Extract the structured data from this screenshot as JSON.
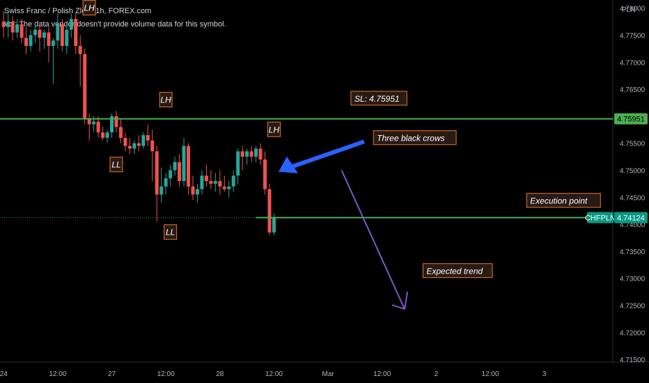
{
  "header": {
    "title": "Swiss Franc / Polish Zloty, 1h, FOREX.com",
    "volume_note": "Vol: The data vendor doesn't provide volume data for this symbol."
  },
  "chart_data": {
    "type": "candlestick",
    "currency_label": "PLN",
    "ylim": [
      4.7145,
      4.7815
    ],
    "y_ticks": [
      4.715,
      4.72,
      4.725,
      4.73,
      4.735,
      4.74,
      4.745,
      4.75,
      4.755,
      4.76,
      4.765,
      4.77,
      4.775,
      4.78
    ],
    "y_tick_labels": [
      "4.71500",
      "4.72000",
      "4.72500",
      "4.73000",
      "4.73500",
      "4.74000",
      "4.74500",
      "4.75000",
      "4.75500",
      "4.76000",
      "4.76500",
      "4.77000",
      "4.77500",
      "4.78000"
    ],
    "x_ticks": [
      {
        "bar": 0,
        "label": "24"
      },
      {
        "bar": 12,
        "label": "12:00"
      },
      {
        "bar": 24,
        "label": "27"
      },
      {
        "bar": 36,
        "label": "12:00"
      },
      {
        "bar": 48,
        "label": "28"
      },
      {
        "bar": 60,
        "label": "12:00"
      },
      {
        "bar": 72,
        "label": "Mar"
      },
      {
        "bar": 84,
        "label": "12:00"
      },
      {
        "bar": 96,
        "label": "2"
      },
      {
        "bar": 108,
        "label": "12:00"
      },
      {
        "bar": 120,
        "label": "3"
      }
    ],
    "bars_total": 136,
    "candles": [
      {
        "o": 4.7775,
        "h": 4.7795,
        "l": 4.7745,
        "c": 4.7765
      },
      {
        "o": 4.7765,
        "h": 4.779,
        "l": 4.7745,
        "c": 4.7775
      },
      {
        "o": 4.7775,
        "h": 4.7785,
        "l": 4.774,
        "c": 4.7755
      },
      {
        "o": 4.7755,
        "h": 4.778,
        "l": 4.7745,
        "c": 4.777
      },
      {
        "o": 4.777,
        "h": 4.778,
        "l": 4.7735,
        "c": 4.7745
      },
      {
        "o": 4.7745,
        "h": 4.7765,
        "l": 4.7715,
        "c": 4.773
      },
      {
        "o": 4.773,
        "h": 4.776,
        "l": 4.772,
        "c": 4.775
      },
      {
        "o": 4.775,
        "h": 4.7775,
        "l": 4.7735,
        "c": 4.776
      },
      {
        "o": 4.776,
        "h": 4.777,
        "l": 4.772,
        "c": 4.7745
      },
      {
        "o": 4.7745,
        "h": 4.776,
        "l": 4.7725,
        "c": 4.7755
      },
      {
        "o": 4.7755,
        "h": 4.7765,
        "l": 4.77,
        "c": 4.773
      },
      {
        "o": 4.773,
        "h": 4.7745,
        "l": 4.766,
        "c": 4.774
      },
      {
        "o": 4.774,
        "h": 4.779,
        "l": 4.7725,
        "c": 4.777
      },
      {
        "o": 4.777,
        "h": 4.778,
        "l": 4.772,
        "c": 4.773
      },
      {
        "o": 4.773,
        "h": 4.777,
        "l": 4.7715,
        "c": 4.776
      },
      {
        "o": 4.776,
        "h": 4.779,
        "l": 4.7745,
        "c": 4.778
      },
      {
        "o": 4.778,
        "h": 4.779,
        "l": 4.7715,
        "c": 4.773
      },
      {
        "o": 4.773,
        "h": 4.775,
        "l": 4.7655,
        "c": 4.7715
      },
      {
        "o": 4.7715,
        "h": 4.7725,
        "l": 4.7585,
        "c": 4.7595
      },
      {
        "o": 4.7595,
        "h": 4.7605,
        "l": 4.7555,
        "c": 4.7585
      },
      {
        "o": 4.7585,
        "h": 4.76,
        "l": 4.757,
        "c": 4.759
      },
      {
        "o": 4.759,
        "h": 4.76,
        "l": 4.756,
        "c": 4.757
      },
      {
        "o": 4.757,
        "h": 4.758,
        "l": 4.7555,
        "c": 4.756
      },
      {
        "o": 4.756,
        "h": 4.7575,
        "l": 4.755,
        "c": 4.757
      },
      {
        "o": 4.757,
        "h": 4.7605,
        "l": 4.756,
        "c": 4.76
      },
      {
        "o": 4.76,
        "h": 4.761,
        "l": 4.757,
        "c": 4.758
      },
      {
        "o": 4.758,
        "h": 4.7595,
        "l": 4.755,
        "c": 4.756
      },
      {
        "o": 4.756,
        "h": 4.757,
        "l": 4.7535,
        "c": 4.7545
      },
      {
        "o": 4.7545,
        "h": 4.756,
        "l": 4.753,
        "c": 4.754
      },
      {
        "o": 4.754,
        "h": 4.7555,
        "l": 4.753,
        "c": 4.755
      },
      {
        "o": 4.755,
        "h": 4.7565,
        "l": 4.7535,
        "c": 4.7545
      },
      {
        "o": 4.7545,
        "h": 4.757,
        "l": 4.754,
        "c": 4.7565
      },
      {
        "o": 4.7565,
        "h": 4.7585,
        "l": 4.7545,
        "c": 4.7555
      },
      {
        "o": 4.7555,
        "h": 4.7575,
        "l": 4.748,
        "c": 4.7535
      },
      {
        "o": 4.7535,
        "h": 4.7545,
        "l": 4.7405,
        "c": 4.7455
      },
      {
        "o": 4.7455,
        "h": 4.7505,
        "l": 4.744,
        "c": 4.747
      },
      {
        "o": 4.747,
        "h": 4.7495,
        "l": 4.7455,
        "c": 4.7485
      },
      {
        "o": 4.7485,
        "h": 4.751,
        "l": 4.747,
        "c": 4.75
      },
      {
        "o": 4.75,
        "h": 4.7525,
        "l": 4.749,
        "c": 4.7515
      },
      {
        "o": 4.7515,
        "h": 4.753,
        "l": 4.747,
        "c": 4.748
      },
      {
        "o": 4.748,
        "h": 4.756,
        "l": 4.747,
        "c": 4.7545
      },
      {
        "o": 4.7545,
        "h": 4.755,
        "l": 4.7455,
        "c": 4.747
      },
      {
        "o": 4.747,
        "h": 4.749,
        "l": 4.7445,
        "c": 4.7455
      },
      {
        "o": 4.7455,
        "h": 4.7475,
        "l": 4.744,
        "c": 4.7465
      },
      {
        "o": 4.7465,
        "h": 4.75,
        "l": 4.7455,
        "c": 4.749
      },
      {
        "o": 4.749,
        "h": 4.751,
        "l": 4.747,
        "c": 4.748
      },
      {
        "o": 4.748,
        "h": 4.75,
        "l": 4.7465,
        "c": 4.7475
      },
      {
        "o": 4.7475,
        "h": 4.7495,
        "l": 4.746,
        "c": 4.748
      },
      {
        "o": 4.748,
        "h": 4.75,
        "l": 4.7455,
        "c": 4.747
      },
      {
        "o": 4.747,
        "h": 4.749,
        "l": 4.746,
        "c": 4.7465
      },
      {
        "o": 4.7465,
        "h": 4.748,
        "l": 4.745,
        "c": 4.747
      },
      {
        "o": 4.747,
        "h": 4.75,
        "l": 4.746,
        "c": 4.749
      },
      {
        "o": 4.749,
        "h": 4.754,
        "l": 4.7475,
        "c": 4.7535
      },
      {
        "o": 4.7535,
        "h": 4.7545,
        "l": 4.75,
        "c": 4.7525
      },
      {
        "o": 4.7525,
        "h": 4.754,
        "l": 4.751,
        "c": 4.7535
      },
      {
        "o": 4.7535,
        "h": 4.7545,
        "l": 4.7515,
        "c": 4.7525
      },
      {
        "o": 4.7525,
        "h": 4.7545,
        "l": 4.7515,
        "c": 4.754
      },
      {
        "o": 4.754,
        "h": 4.755,
        "l": 4.751,
        "c": 4.752
      },
      {
        "o": 4.752,
        "h": 4.7535,
        "l": 4.7455,
        "c": 4.7465
      },
      {
        "o": 4.7465,
        "h": 4.7475,
        "l": 4.738,
        "c": 4.7385
      },
      {
        "o": 4.7385,
        "h": 4.742,
        "l": 4.738,
        "c": 4.7412
      }
    ],
    "sl_line": {
      "value": 4.75951,
      "label": "4.75951"
    },
    "price_line": {
      "value": 4.74124,
      "label": "4.74124",
      "symbol": "CHFPLN"
    },
    "markers": [
      {
        "text": "LH",
        "bar": 19,
        "price": 4.78
      },
      {
        "text": "LH",
        "bar": 36,
        "price": 4.763
      },
      {
        "text": "LL",
        "bar": 25,
        "price": 4.751
      },
      {
        "text": "LH",
        "bar": 60,
        "price": 4.7575
      },
      {
        "text": "LL",
        "bar": 37,
        "price": 4.7385
      }
    ],
    "annotations": [
      {
        "text": "SL: 4.75951",
        "bar": 78,
        "price": 4.7632
      },
      {
        "text": "Three black crows",
        "bar": 83,
        "price": 4.7559
      },
      {
        "text": "Execution point",
        "bar": 117,
        "price": 4.7443
      },
      {
        "text": "Expected trend",
        "bar": 94,
        "price": 4.7313
      }
    ],
    "colors": {
      "up": "#26a69a",
      "down": "#ef5350",
      "sl_line": "#4caf50",
      "sl_tag": "#4caf50",
      "price_tag": "#089981",
      "marker_fill": "#2a1a14",
      "marker_border": "#e8772e",
      "arrow_blue": "#2962ff",
      "arrow_purple": "#7e57c2"
    }
  }
}
